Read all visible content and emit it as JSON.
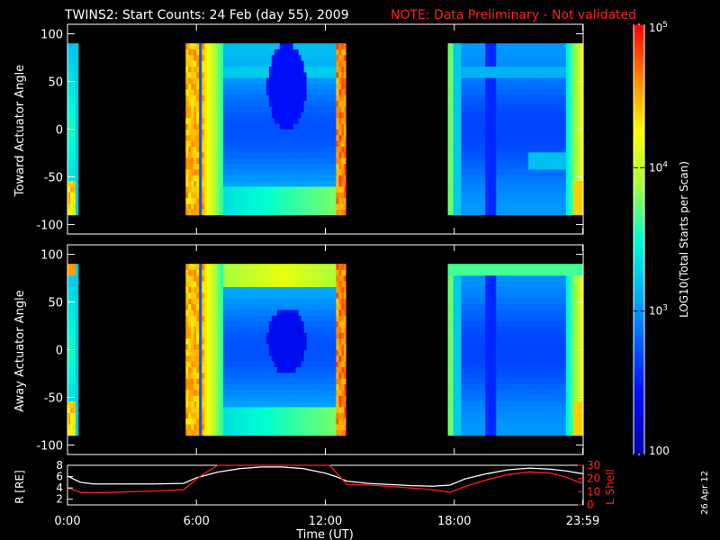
{
  "title": "TWINS2: Start Counts: 24 Feb (day  55), 2009",
  "note": "NOTE: Data Preliminary - Not validated",
  "date_stamp": "26 Apr 12",
  "chart_data": [
    {
      "type": "heatmap",
      "name": "toward",
      "ylabel": "Toward Actuator Angle",
      "ylim": [
        -110,
        110
      ],
      "yticks": [
        "100",
        "50",
        "0",
        "-50",
        "-100"
      ],
      "ytick_values": [
        100,
        50,
        0,
        -50,
        -100
      ],
      "data_coverage_hours": [
        [
          0.0,
          0.5
        ],
        [
          5.5,
          12.95
        ],
        [
          17.7,
          24.0
        ]
      ],
      "angle_range": [
        -90,
        90
      ]
    },
    {
      "type": "heatmap",
      "name": "away",
      "ylabel": "Away Actuator Angle",
      "ylim": [
        -110,
        110
      ],
      "yticks": [
        "100",
        "50",
        "0",
        "-50",
        "-100"
      ],
      "ytick_values": [
        100,
        50,
        0,
        -50,
        -100
      ],
      "data_coverage_hours": [
        [
          0.0,
          0.5
        ],
        [
          5.5,
          12.95
        ],
        [
          17.7,
          24.0
        ]
      ],
      "angle_range": [
        -90,
        90
      ]
    },
    {
      "type": "line",
      "name": "orbit",
      "ylabel_left": "R [RE]",
      "ylabel_right": "L Shell",
      "ylim_left": [
        1,
        8
      ],
      "ylim_right": [
        0,
        30
      ],
      "yticks_left": [
        "8",
        "6",
        "4",
        "2"
      ],
      "ytick_values_left": [
        8,
        6,
        4,
        2
      ],
      "yticks_right": [
        "30",
        "20",
        "10",
        "0"
      ],
      "ytick_values_right": [
        30,
        20,
        10,
        0
      ],
      "xlabel": "Time (UT)",
      "xticks": [
        "0:00",
        "6:00",
        "12:00",
        "18:00",
        "23:59"
      ],
      "xtick_values": [
        0,
        6,
        12,
        18,
        23.98
      ],
      "series": [
        {
          "name": "R",
          "axis": "left",
          "color": "#ffffff",
          "x": [
            0,
            0.6,
            1.2,
            2,
            3,
            4,
            5.4,
            6,
            7,
            8,
            9,
            10,
            11,
            11.5,
            12,
            12.5,
            13,
            14,
            15,
            16,
            17,
            17.8,
            18.5,
            19.5,
            20.5,
            21.5,
            22.5,
            23.2,
            24
          ],
          "y": [
            6.1,
            5.0,
            4.7,
            4.7,
            4.7,
            4.7,
            4.8,
            5.8,
            6.8,
            7.4,
            7.7,
            7.7,
            7.4,
            7.0,
            6.6,
            6.0,
            5.2,
            4.8,
            4.6,
            4.4,
            4.3,
            4.5,
            5.6,
            6.5,
            7.2,
            7.5,
            7.3,
            7.0,
            6.5
          ]
        },
        {
          "name": "L Shell",
          "axis": "right",
          "color": "#ff2020",
          "x": [
            0,
            0.6,
            1.2,
            2,
            3,
            4,
            5.4,
            6.2,
            7.0,
            12.2,
            13.0,
            14,
            15,
            16,
            17,
            17.8,
            18.5,
            19.5,
            20.5,
            21.5,
            22.5,
            23.2,
            24
          ],
          "y": [
            13,
            9.5,
            9.2,
            9.5,
            10,
            10.5,
            11.5,
            22,
            31,
            31,
            15.5,
            15,
            14,
            12.8,
            11.5,
            9.5,
            14,
            19,
            23,
            25,
            24,
            21,
            16
          ]
        }
      ]
    },
    {
      "type": "colorbar",
      "label": "LOG10(Total Starts per Scan)",
      "scale": "log",
      "range": [
        100,
        100000
      ],
      "ticks": [
        "10^5",
        "10^4",
        "10^3",
        "100"
      ],
      "tick_values": [
        100000,
        10000,
        1000,
        100
      ]
    }
  ]
}
